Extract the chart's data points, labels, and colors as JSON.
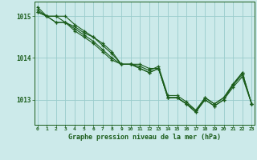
{
  "title": "Graphe pression niveau de la mer (hPa)",
  "bg_color": "#cceaea",
  "grid_color": "#99cccc",
  "line_color": "#1a5c1a",
  "x_labels": [
    "0",
    "1",
    "2",
    "3",
    "4",
    "5",
    "6",
    "7",
    "8",
    "9",
    "10",
    "11",
    "12",
    "13",
    "14",
    "15",
    "16",
    "17",
    "18",
    "19",
    "20",
    "21",
    "22",
    "23"
  ],
  "ylim": [
    1012.4,
    1015.35
  ],
  "yticks": [
    1013,
    1014,
    1015
  ],
  "series": [
    [
      1015.22,
      1015.0,
      1015.0,
      1015.0,
      1014.8,
      1014.65,
      1014.5,
      1014.35,
      1014.15,
      1013.85,
      1013.85,
      1013.85,
      1013.75,
      1013.75,
      1013.05,
      1013.05,
      1012.9,
      1012.75,
      1013.0,
      1012.85,
      1013.0,
      1013.35,
      1013.65,
      1012.9
    ],
    [
      1015.1,
      1015.0,
      1014.85,
      1014.85,
      1014.7,
      1014.55,
      1014.4,
      1014.2,
      1014.0,
      1013.85,
      1013.85,
      1013.75,
      1013.65,
      1013.75,
      1013.05,
      1013.05,
      1012.9,
      1012.7,
      1013.0,
      1012.85,
      1013.0,
      1013.3,
      1013.55,
      1012.9
    ],
    [
      1015.15,
      1015.0,
      1014.85,
      1014.85,
      1014.65,
      1014.5,
      1014.35,
      1014.15,
      1013.95,
      1013.85,
      1013.85,
      1013.75,
      1013.65,
      1013.75,
      1013.05,
      1013.05,
      1012.9,
      1012.7,
      1013.05,
      1012.9,
      1013.05,
      1013.35,
      1013.6,
      1012.9
    ],
    [
      1015.1,
      1015.0,
      1015.0,
      1014.85,
      1014.75,
      1014.6,
      1014.5,
      1014.3,
      1014.1,
      1013.85,
      1013.85,
      1013.8,
      1013.7,
      1013.8,
      1013.1,
      1013.1,
      1012.95,
      1012.75,
      1013.05,
      1012.9,
      1013.05,
      1013.38,
      1013.65,
      1012.9
    ]
  ],
  "figsize": [
    3.2,
    2.0
  ],
  "dpi": 100
}
